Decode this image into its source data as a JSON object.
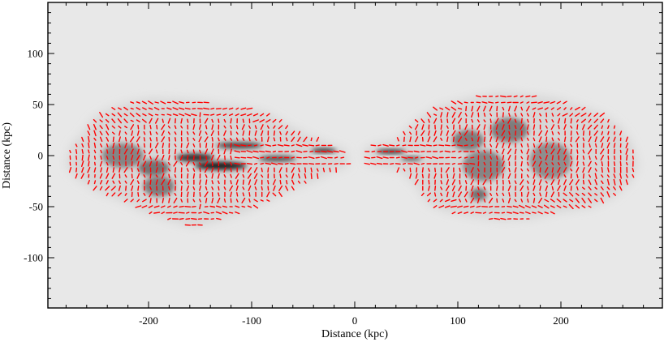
{
  "chart_data": {
    "type": "heatmap",
    "title": "",
    "xlabel": "Distance (kpc)",
    "ylabel": "Distance (kpc)",
    "xlim": [
      -300,
      300
    ],
    "ylim": [
      -150,
      150
    ],
    "x_ticks": [
      -200,
      -100,
      0,
      100,
      200
    ],
    "y_ticks": [
      -100,
      -50,
      0,
      50,
      100
    ],
    "x_tick_labels": [
      "-200",
      "-100",
      "0",
      "100",
      "200"
    ],
    "y_tick_labels": [
      "-100",
      "-50",
      "0",
      "50",
      "100"
    ],
    "grid": false,
    "background_color": "#e8e8e8",
    "vector_color": "#ff0000",
    "intensity_colormap": "grayscale",
    "lobes": [
      {
        "name": "",
        "center": [
          -150,
          -5
        ],
        "half_width": 130,
        "half_height": 60,
        "outline": [
          [
            -280,
            -10
          ],
          [
            -275,
            10
          ],
          [
            -265,
            20
          ],
          [
            -255,
            35
          ],
          [
            -240,
            45
          ],
          [
            -220,
            52
          ],
          [
            -200,
            56
          ],
          [
            -170,
            55
          ],
          [
            -140,
            52
          ],
          [
            -110,
            48
          ],
          [
            -85,
            42
          ],
          [
            -65,
            30
          ],
          [
            -45,
            20
          ],
          [
            -20,
            10
          ],
          [
            -8,
            5
          ],
          [
            -5,
            -10
          ],
          [
            -20,
            -15
          ],
          [
            -40,
            -25
          ],
          [
            -65,
            -35
          ],
          [
            -85,
            -45
          ],
          [
            -105,
            -55
          ],
          [
            -130,
            -63
          ],
          [
            -155,
            -70
          ],
          [
            -175,
            -65
          ],
          [
            -200,
            -57
          ],
          [
            -225,
            -45
          ],
          [
            -250,
            -35
          ],
          [
            -270,
            -22
          ]
        ],
        "bright_knots": [
          {
            "x": -155,
            "y": -2,
            "intensity": 0.9,
            "sx": 18,
            "sy": 4
          },
          {
            "x": -130,
            "y": -10,
            "intensity": 1.0,
            "sx": 25,
            "sy": 4
          },
          {
            "x": -112,
            "y": 10,
            "intensity": 0.8,
            "sx": 22,
            "sy": 3
          },
          {
            "x": -75,
            "y": -3,
            "intensity": 0.7,
            "sx": 18,
            "sy": 3
          },
          {
            "x": -30,
            "y": 5,
            "intensity": 1.0,
            "sx": 12,
            "sy": 2
          },
          {
            "x": -195,
            "y": -12,
            "intensity": 0.5,
            "sx": 15,
            "sy": 8
          },
          {
            "x": -225,
            "y": 0,
            "intensity": 0.4,
            "sx": 20,
            "sy": 12
          },
          {
            "x": -190,
            "y": -30,
            "intensity": 0.45,
            "sx": 15,
            "sy": 10
          }
        ]
      },
      {
        "name": "",
        "center": [
          140,
          0
        ],
        "half_width": 135,
        "half_height": 65,
        "outline": [
          [
            8,
            5
          ],
          [
            20,
            12
          ],
          [
            40,
            15
          ],
          [
            60,
            35
          ],
          [
            80,
            48
          ],
          [
            110,
            56
          ],
          [
            140,
            62
          ],
          [
            165,
            60
          ],
          [
            195,
            56
          ],
          [
            220,
            48
          ],
          [
            242,
            40
          ],
          [
            258,
            28
          ],
          [
            270,
            10
          ],
          [
            275,
            -10
          ],
          [
            268,
            -25
          ],
          [
            252,
            -40
          ],
          [
            232,
            -50
          ],
          [
            200,
            -55
          ],
          [
            170,
            -62
          ],
          [
            140,
            -63
          ],
          [
            115,
            -60
          ],
          [
            90,
            -55
          ],
          [
            72,
            -48
          ],
          [
            60,
            -30
          ],
          [
            45,
            -15
          ],
          [
            30,
            -12
          ],
          [
            12,
            -8
          ]
        ],
        "bright_knots": [
          {
            "x": 35,
            "y": 4,
            "intensity": 1.0,
            "sx": 14,
            "sy": 2
          },
          {
            "x": 55,
            "y": -3,
            "intensity": 0.7,
            "sx": 10,
            "sy": 2
          },
          {
            "x": 110,
            "y": 15,
            "intensity": 0.45,
            "sx": 15,
            "sy": 10
          },
          {
            "x": 150,
            "y": 25,
            "intensity": 0.45,
            "sx": 18,
            "sy": 12
          },
          {
            "x": 125,
            "y": -10,
            "intensity": 0.4,
            "sx": 20,
            "sy": 15
          },
          {
            "x": 120,
            "y": -38,
            "intensity": 0.5,
            "sx": 8,
            "sy": 6
          },
          {
            "x": 190,
            "y": -5,
            "intensity": 0.35,
            "sx": 20,
            "sy": 18
          }
        ]
      }
    ]
  }
}
